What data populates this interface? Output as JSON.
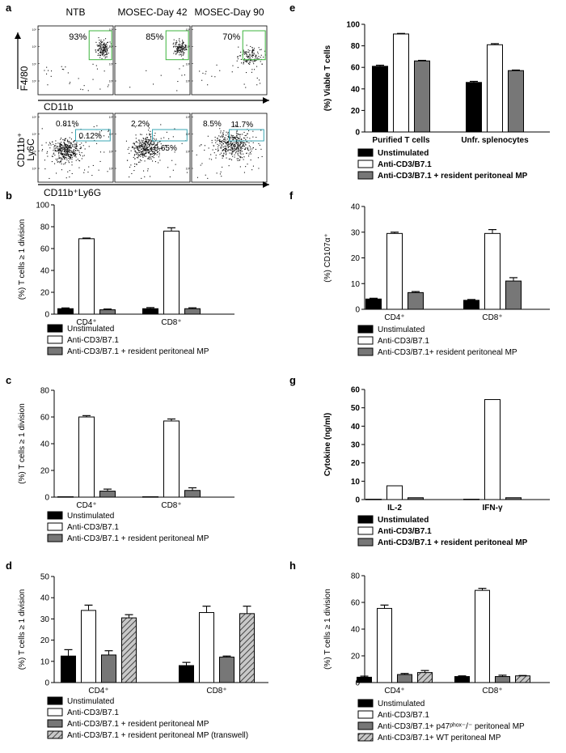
{
  "figure": {
    "panel_letters": [
      "a",
      "b",
      "c",
      "d",
      "e",
      "f",
      "g",
      "h"
    ]
  },
  "flow": {
    "rows": [
      {
        "ylabel": "F4/80",
        "xlabel": "CD11b",
        "plots": [
          {
            "title": "NTB",
            "gates": [
              "93%"
            ]
          },
          {
            "title": "MOSEC-Day 42",
            "gates": [
              "85%"
            ]
          },
          {
            "title": "MOSEC-Day 90",
            "gates": [
              "70%"
            ]
          }
        ]
      },
      {
        "ylabel_top": "CD11b⁺",
        "ylabel_bottom": "Ly6C",
        "xlabel": "CD11b⁺Ly6G",
        "plots": [
          {
            "gates": [
              "0.81%",
              "0.12%"
            ]
          },
          {
            "gates": [
              "2.2%",
              "0.65%"
            ]
          },
          {
            "gates": [
              "8.5%",
              "11.7%"
            ]
          }
        ]
      }
    ],
    "tick_label": "10⁵",
    "colors": {
      "gate_row1": "#3cb43c",
      "gate_row2": "#3aa7b4"
    }
  },
  "chart_data": [
    {
      "panel": "b",
      "type": "bar",
      "categories": [
        "CD4⁺",
        "CD8⁺"
      ],
      "ylabel": "(%) T cells ≥ 1 division",
      "ylim": [
        0,
        100
      ],
      "yticks": [
        0,
        20,
        40,
        60,
        80,
        100
      ],
      "series": [
        {
          "name": "Unstimulated",
          "values": [
            5,
            5
          ],
          "errors": [
            0.7,
            1
          ]
        },
        {
          "name": "Anti-CD3/B7.1",
          "values": [
            69,
            76
          ],
          "errors": [
            0.6,
            3
          ]
        },
        {
          "name": "Anti-CD3/B7.1 + resident peritoneal MP",
          "values": [
            4,
            5
          ],
          "errors": [
            0.7,
            0.8
          ]
        }
      ]
    },
    {
      "panel": "c",
      "type": "bar",
      "categories": [
        "CD4⁺",
        "CD8⁺"
      ],
      "ylabel": "(%) T cells ≥ 1 division",
      "ylim": [
        0,
        80
      ],
      "yticks": [
        0,
        20,
        40,
        60,
        80
      ],
      "series": [
        {
          "name": "Unstimulated",
          "values": [
            0.3,
            0.3
          ],
          "errors": [
            0,
            0
          ]
        },
        {
          "name": "Anti-CD3/B7.1",
          "values": [
            60,
            57
          ],
          "errors": [
            1,
            1.5
          ]
        },
        {
          "name": "Anti-CD3/B7.1 + resident peritoneal MP",
          "values": [
            4.5,
            5
          ],
          "errors": [
            1.5,
            2
          ]
        }
      ]
    },
    {
      "panel": "d",
      "type": "bar",
      "categories": [
        "CD4⁺",
        "CD8⁺"
      ],
      "ylabel": "(%) T cells ≥ 1 division",
      "ylim": [
        0,
        50
      ],
      "yticks": [
        0,
        10,
        20,
        30,
        40,
        50
      ],
      "series": [
        {
          "name": "Unstimulated",
          "values": [
            12.5,
            8
          ],
          "errors": [
            3,
            1.5
          ]
        },
        {
          "name": "Anti-CD3/B7.1",
          "values": [
            34,
            33
          ],
          "errors": [
            2.5,
            3
          ]
        },
        {
          "name": "Anti-CD3/B7.1 + resident peritoneal MP",
          "values": [
            13,
            12
          ],
          "errors": [
            2,
            0.5
          ]
        },
        {
          "name": "Anti-CD3/B7.1 + resident peritoneal MP (transwell)",
          "values": [
            30.5,
            32.5
          ],
          "errors": [
            1.5,
            3.5
          ]
        }
      ]
    },
    {
      "panel": "e",
      "type": "bar",
      "categories": [
        "Purified T cells",
        "Unfr. splenocytes"
      ],
      "ylabel": "(%) Viable T cells",
      "ylim": [
        0,
        100
      ],
      "yticks": [
        0,
        20,
        40,
        60,
        80,
        100
      ],
      "series": [
        {
          "name": "Unstimulated",
          "values": [
            61,
            46
          ],
          "errors": [
            1,
            1
          ]
        },
        {
          "name": "Anti-CD3/B7.1",
          "values": [
            91,
            81
          ],
          "errors": [
            0.5,
            1
          ]
        },
        {
          "name": "Anti-CD3/B7.1 + resident peritoneal MP",
          "values": [
            66,
            57
          ],
          "errors": [
            0.5,
            0.5
          ]
        }
      ]
    },
    {
      "panel": "f",
      "type": "bar",
      "categories": [
        "CD4⁺",
        "CD8⁺"
      ],
      "ylabel": "(%) CD107α⁺",
      "ylim": [
        0,
        40
      ],
      "yticks": [
        0,
        10,
        20,
        30,
        40
      ],
      "series": [
        {
          "name": "Unstimulated",
          "values": [
            4,
            3.5
          ],
          "errors": [
            0.3,
            0.3
          ]
        },
        {
          "name": "Anti-CD3/B7.1",
          "values": [
            29.5,
            29.5
          ],
          "errors": [
            0.5,
            1.5
          ]
        },
        {
          "name": "Anti-CD3/B7.1+ resident peritoneal MP",
          "values": [
            6.5,
            11
          ],
          "errors": [
            0.4,
            1.3
          ]
        }
      ]
    },
    {
      "panel": "g",
      "type": "bar",
      "categories": [
        "IL-2",
        "IFN-γ"
      ],
      "ylabel": "Cytokine (ng/ml)",
      "ylim": [
        0,
        60
      ],
      "yticks": [
        0,
        10,
        20,
        30,
        40,
        50,
        60
      ],
      "series": [
        {
          "name": "Unstimulated",
          "values": [
            0.2,
            0.2
          ],
          "errors": [
            0,
            0
          ]
        },
        {
          "name": "Anti-CD3/B7.1",
          "values": [
            7.5,
            54.5
          ],
          "errors": [
            0,
            0
          ]
        },
        {
          "name": "Anti-CD3/B7.1 + resident peritoneal MP",
          "values": [
            1,
            1
          ],
          "errors": [
            0,
            0
          ]
        }
      ]
    },
    {
      "panel": "h",
      "type": "bar",
      "categories": [
        "CD4⁺",
        "CD8⁺"
      ],
      "ylabel": "(%) T cells ≥ 1 division",
      "ylim": [
        0,
        80
      ],
      "yticks": [
        0,
        20,
        40,
        60,
        80
      ],
      "series": [
        {
          "name": "Unstimulated",
          "values": [
            4,
            4.5
          ],
          "errors": [
            0.8,
            0.5
          ]
        },
        {
          "name": "Anti-CD3/B7.1",
          "values": [
            55.5,
            69
          ],
          "errors": [
            2.5,
            1.5
          ]
        },
        {
          "name": "Anti-CD3/B7.1+ p47ᵖʰᵒˣ⁻/⁻ peritoneal MP",
          "values": [
            6,
            4.5
          ],
          "errors": [
            0.8,
            1
          ]
        },
        {
          "name": "Anti-CD3/B7.1+ WT peritoneal MP",
          "values": [
            7.5,
            5
          ],
          "errors": [
            1.5,
            0.3
          ]
        }
      ]
    }
  ]
}
